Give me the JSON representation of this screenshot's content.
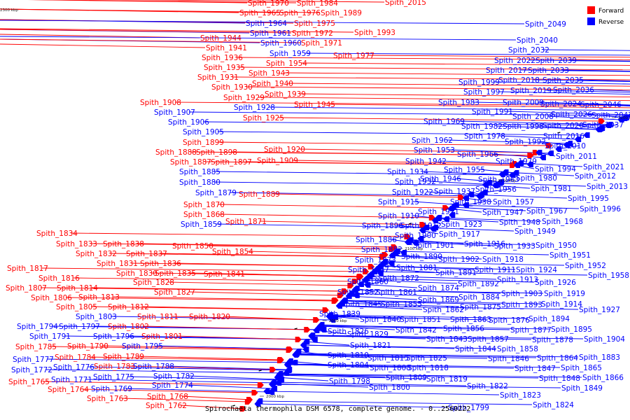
{
  "colors": {
    "forward": "#ff0000",
    "reverse": "#0000ff",
    "backbone": "#808080"
  },
  "caption": "Spirochaeta thermophila DSM 6578, complete genome. - 0..2560222",
  "legend": [
    {
      "label": "Forward",
      "color": "#ff0000"
    },
    {
      "label": "Reverse",
      "color": "#0000ff"
    }
  ],
  "ticks": [
    "2000 kbp",
    "2050 kbp",
    "2100 kbp",
    "2150 kbp",
    "2200 kbp",
    "2250 kbp",
    "2300 kbp"
  ],
  "genes": [
    {
      "name": "Spith_1762",
      "strand": "forward"
    },
    {
      "name": "Spith_1763",
      "strand": "forward"
    },
    {
      "name": "Spith_1764",
      "strand": "forward"
    },
    {
      "name": "Spith_1765",
      "strand": "forward"
    },
    {
      "name": "Spith_1768",
      "strand": "forward"
    },
    {
      "name": "Spith_1769",
      "strand": "reverse"
    },
    {
      "name": "Spith_1771",
      "strand": "reverse"
    },
    {
      "name": "Spith_1772",
      "strand": "reverse"
    },
    {
      "name": "Spith_1774",
      "strand": "reverse"
    },
    {
      "name": "Spith_1775",
      "strand": "reverse"
    },
    {
      "name": "Spith_1776",
      "strand": "reverse"
    },
    {
      "name": "Spith_1777",
      "strand": "reverse"
    },
    {
      "name": "Spith_1782",
      "strand": "reverse"
    },
    {
      "name": "Spith_1783",
      "strand": "forward"
    },
    {
      "name": "Spith_1784",
      "strand": "forward"
    },
    {
      "name": "Spith_1785",
      "strand": "forward"
    },
    {
      "name": "Spith_1788",
      "strand": "reverse"
    },
    {
      "name": "Spith_1789",
      "strand": "forward"
    },
    {
      "name": "Spith_1790",
      "strand": "forward"
    },
    {
      "name": "Spith_1791",
      "strand": "reverse"
    },
    {
      "name": "Spith_1794",
      "strand": "reverse"
    },
    {
      "name": "Spith_1795",
      "strand": "reverse"
    },
    {
      "name": "Spith_1796",
      "strand": "reverse"
    },
    {
      "name": "Spith_1797",
      "strand": "reverse"
    },
    {
      "name": "Spith_1801",
      "strand": "forward"
    },
    {
      "name": "Spith_1802",
      "strand": "forward"
    },
    {
      "name": "Spith_1803",
      "strand": "reverse"
    },
    {
      "name": "Spith_1805",
      "strand": "forward"
    },
    {
      "name": "Spith_1806",
      "strand": "forward"
    },
    {
      "name": "Spith_1807",
      "strand": "forward"
    },
    {
      "name": "Spith_1811",
      "strand": "forward"
    },
    {
      "name": "Spith_1812",
      "strand": "forward"
    },
    {
      "name": "Spith_1813",
      "strand": "forward"
    },
    {
      "name": "Spith_1814",
      "strand": "forward"
    },
    {
      "name": "Spith_1816",
      "strand": "forward"
    },
    {
      "name": "Spith_1817",
      "strand": "forward"
    },
    {
      "name": "Spith_1820",
      "strand": "forward"
    },
    {
      "name": "Spith_1827",
      "strand": "forward"
    },
    {
      "name": "Spith_1828",
      "strand": "forward"
    },
    {
      "name": "Spith_1830",
      "strand": "forward"
    },
    {
      "name": "Spith_1831",
      "strand": "forward"
    },
    {
      "name": "Spith_1832",
      "strand": "forward"
    },
    {
      "name": "Spith_1833",
      "strand": "forward"
    },
    {
      "name": "Spith_1834",
      "strand": "forward"
    },
    {
      "name": "Spith_1835",
      "strand": "forward"
    },
    {
      "name": "Spith_1836",
      "strand": "forward"
    },
    {
      "name": "Spith_1837",
      "strand": "forward"
    },
    {
      "name": "Spith_1838",
      "strand": "forward"
    },
    {
      "name": "Spith_1841",
      "strand": "forward"
    },
    {
      "name": "Spith_1850",
      "strand": "forward"
    },
    {
      "name": "Spith_1854",
      "strand": "forward"
    },
    {
      "name": "Spith_1859",
      "strand": "reverse"
    },
    {
      "name": "Spith_1868",
      "strand": "forward"
    },
    {
      "name": "Spith_1870",
      "strand": "forward"
    },
    {
      "name": "Spith_1871",
      "strand": "forward"
    },
    {
      "name": "Spith_1879",
      "strand": "reverse"
    },
    {
      "name": "Spith_1880",
      "strand": "reverse"
    },
    {
      "name": "Spith_1885",
      "strand": "reverse"
    },
    {
      "name": "Spith_1887",
      "strand": "forward"
    },
    {
      "name": "Spith_1888",
      "strand": "forward"
    },
    {
      "name": "Spith_1889",
      "strand": "forward"
    },
    {
      "name": "Spith_1897",
      "strand": "forward"
    },
    {
      "name": "Spith_1898",
      "strand": "forward"
    },
    {
      "name": "Spith_1899",
      "strand": "forward"
    },
    {
      "name": "Spith_1905",
      "strand": "reverse"
    },
    {
      "name": "Spith_1906",
      "strand": "reverse"
    },
    {
      "name": "Spith_1907",
      "strand": "reverse"
    },
    {
      "name": "Spith_1908",
      "strand": "forward"
    },
    {
      "name": "Spith_1909",
      "strand": "forward"
    },
    {
      "name": "Spith_1920",
      "strand": "forward"
    },
    {
      "name": "Spith_1925",
      "strand": "forward"
    },
    {
      "name": "Spith_1928",
      "strand": "reverse"
    },
    {
      "name": "Spith_1929",
      "strand": "forward"
    },
    {
      "name": "Spith_1930",
      "strand": "forward"
    },
    {
      "name": "Spith_1931",
      "strand": "forward"
    },
    {
      "name": "Spith_1935",
      "strand": "forward"
    },
    {
      "name": "Spith_1936",
      "strand": "forward"
    },
    {
      "name": "Spith_1939",
      "strand": "forward"
    },
    {
      "name": "Spith_1940",
      "strand": "forward"
    },
    {
      "name": "Spith_1941",
      "strand": "forward"
    },
    {
      "name": "Spith_1943",
      "strand": "forward"
    },
    {
      "name": "Spith_1944",
      "strand": "forward"
    },
    {
      "name": "Spith_1945",
      "strand": "forward"
    },
    {
      "name": "Spith_1954",
      "strand": "forward"
    },
    {
      "name": "Spith_1959",
      "strand": "reverse"
    },
    {
      "name": "Spith_1960",
      "strand": "reverse"
    },
    {
      "name": "Spith_1961",
      "strand": "reverse"
    },
    {
      "name": "Spith_1964",
      "strand": "reverse"
    },
    {
      "name": "Spith_1965",
      "strand": "forward"
    },
    {
      "name": "Spith_1970",
      "strand": "forward"
    },
    {
      "name": "Spith_1971",
      "strand": "forward"
    },
    {
      "name": "Spith_1972",
      "strand": "forward"
    },
    {
      "name": "Spith_1975",
      "strand": "forward"
    },
    {
      "name": "Spith_1976",
      "strand": "forward"
    },
    {
      "name": "Spith_1977",
      "strand": "forward"
    },
    {
      "name": "Spith_1984",
      "strand": "forward"
    },
    {
      "name": "Spith_1989",
      "strand": "forward"
    },
    {
      "name": "Spith_1993",
      "strand": "forward"
    },
    {
      "name": "Spith_2015",
      "strand": "forward"
    },
    {
      "name": "Spith_1798",
      "strand": "reverse"
    },
    {
      "name": "Spith_1799",
      "strand": "reverse"
    },
    {
      "name": "Spith_1800",
      "strand": "reverse"
    },
    {
      "name": "Spith_1804",
      "strand": "reverse"
    },
    {
      "name": "Spith_1808",
      "strand": "reverse"
    },
    {
      "name": "Spith_1809",
      "strand": "reverse"
    },
    {
      "name": "Spith_1810",
      "strand": "reverse"
    },
    {
      "name": "Spith_1815",
      "strand": "reverse"
    },
    {
      "name": "Spith_1818",
      "strand": "reverse"
    },
    {
      "name": "Spith_1819",
      "strand": "reverse"
    },
    {
      "name": "Spith_1821",
      "strand": "reverse"
    },
    {
      "name": "Spith_1822",
      "strand": "reverse"
    },
    {
      "name": "Spith_1823",
      "strand": "reverse"
    },
    {
      "name": "Spith_1824",
      "strand": "reverse"
    },
    {
      "name": "Spith_1825",
      "strand": "reverse"
    },
    {
      "name": "Spith_1826",
      "strand": "reverse"
    },
    {
      "name": "Spith_1829",
      "strand": "reverse"
    },
    {
      "name": "Spith_1839",
      "strand": "reverse"
    },
    {
      "name": "Spith_1840",
      "strand": "reverse"
    },
    {
      "name": "Spith_1842",
      "strand": "reverse"
    },
    {
      "name": "Spith_1843",
      "strand": "reverse"
    },
    {
      "name": "Spith_1844",
      "strand": "reverse"
    },
    {
      "name": "Spith_1845",
      "strand": "reverse"
    },
    {
      "name": "Spith_1846",
      "strand": "reverse"
    },
    {
      "name": "Spith_1847",
      "strand": "reverse"
    },
    {
      "name": "Spith_1848",
      "strand": "reverse"
    },
    {
      "name": "Spith_1849",
      "strand": "reverse"
    },
    {
      "name": "Spith_1851",
      "strand": "reverse"
    },
    {
      "name": "Spith_1852",
      "strand": "reverse"
    },
    {
      "name": "Spith_1855",
      "strand": "reverse"
    },
    {
      "name": "Spith_1856",
      "strand": "reverse"
    },
    {
      "name": "Spith_1857",
      "strand": "reverse"
    },
    {
      "name": "Spith_1858",
      "strand": "reverse"
    },
    {
      "name": "Spith_1860",
      "strand": "reverse"
    },
    {
      "name": "Spith_1861",
      "strand": "reverse"
    },
    {
      "name": "Spith_1862",
      "strand": "reverse"
    },
    {
      "name": "Spith_1863",
      "strand": "reverse"
    },
    {
      "name": "Spith_1864",
      "strand": "reverse"
    },
    {
      "name": "Spith_1865",
      "strand": "reverse"
    },
    {
      "name": "Spith_1866",
      "strand": "reverse"
    },
    {
      "name": "Spith_1867",
      "strand": "reverse"
    },
    {
      "name": "Spith_1869",
      "strand": "reverse"
    },
    {
      "name": "Spith_1872",
      "strand": "reverse"
    },
    {
      "name": "Spith_1873",
      "strand": "reverse"
    },
    {
      "name": "Spith_1874",
      "strand": "reverse"
    },
    {
      "name": "Spith_1875",
      "strand": "reverse"
    },
    {
      "name": "Spith_1876",
      "strand": "reverse"
    },
    {
      "name": "Spith_1877",
      "strand": "reverse"
    },
    {
      "name": "Spith_1878",
      "strand": "reverse"
    },
    {
      "name": "Spith_1881",
      "strand": "reverse"
    },
    {
      "name": "Spith_1882",
      "strand": "reverse"
    },
    {
      "name": "Spith_1883",
      "strand": "reverse"
    },
    {
      "name": "Spith_1884",
      "strand": "reverse"
    },
    {
      "name": "Spith_1886",
      "strand": "reverse"
    },
    {
      "name": "Spith_1890",
      "strand": "reverse"
    },
    {
      "name": "Spith_1891",
      "strand": "reverse"
    },
    {
      "name": "Spith_1892",
      "strand": "reverse"
    },
    {
      "name": "Spith_1893",
      "strand": "reverse"
    },
    {
      "name": "Spith_1894",
      "strand": "reverse"
    },
    {
      "name": "Spith_1895",
      "strand": "reverse"
    },
    {
      "name": "Spith_1896",
      "strand": "reverse"
    },
    {
      "name": "Spith_1900",
      "strand": "reverse"
    },
    {
      "name": "Spith_1901",
      "strand": "reverse"
    },
    {
      "name": "Spith_1902",
      "strand": "reverse"
    },
    {
      "name": "Spith_1903",
      "strand": "reverse"
    },
    {
      "name": "Spith_1904",
      "strand": "reverse"
    },
    {
      "name": "Spith_1910",
      "strand": "reverse"
    },
    {
      "name": "Spith_1911",
      "strand": "reverse"
    },
    {
      "name": "Spith_1912",
      "strand": "reverse"
    },
    {
      "name": "Spith_1913",
      "strand": "reverse"
    },
    {
      "name": "Spith_1914",
      "strand": "reverse"
    },
    {
      "name": "Spith_1915",
      "strand": "reverse"
    },
    {
      "name": "Spith_1916",
      "strand": "reverse"
    },
    {
      "name": "Spith_1917",
      "strand": "reverse"
    },
    {
      "name": "Spith_1918",
      "strand": "reverse"
    },
    {
      "name": "Spith_1919",
      "strand": "reverse"
    },
    {
      "name": "Spith_1921",
      "strand": "reverse"
    },
    {
      "name": "Spith_1922",
      "strand": "reverse"
    },
    {
      "name": "Spith_1923",
      "strand": "reverse"
    },
    {
      "name": "Spith_1924",
      "strand": "reverse"
    },
    {
      "name": "Spith_1926",
      "strand": "reverse"
    },
    {
      "name": "Spith_1927",
      "strand": "reverse"
    },
    {
      "name": "Spith_1932",
      "strand": "reverse"
    },
    {
      "name": "Spith_1933",
      "strand": "reverse"
    },
    {
      "name": "Spith_1934",
      "strand": "reverse"
    },
    {
      "name": "Spith_1937",
      "strand": "reverse"
    },
    {
      "name": "Spith_1938",
      "strand": "reverse"
    },
    {
      "name": "Spith_1942",
      "strand": "reverse"
    },
    {
      "name": "Spith_1946",
      "strand": "reverse"
    },
    {
      "name": "Spith_1947",
      "strand": "reverse"
    },
    {
      "name": "Spith_1948",
      "strand": "reverse"
    },
    {
      "name": "Spith_1949",
      "strand": "reverse"
    },
    {
      "name": "Spith_1950",
      "strand": "reverse"
    },
    {
      "name": "Spith_1951",
      "strand": "reverse"
    },
    {
      "name": "Spith_1952",
      "strand": "reverse"
    },
    {
      "name": "Spith_1953",
      "strand": "reverse"
    },
    {
      "name": "Spith_1955",
      "strand": "reverse"
    },
    {
      "name": "Spith_1956",
      "strand": "reverse"
    },
    {
      "name": "Spith_1957",
      "strand": "reverse"
    },
    {
      "name": "Spith_1958",
      "strand": "reverse"
    },
    {
      "name": "Spith_1962",
      "strand": "reverse"
    },
    {
      "name": "Spith_1963",
      "strand": "reverse"
    },
    {
      "name": "Spith_1966",
      "strand": "reverse"
    },
    {
      "name": "Spith_1967",
      "strand": "reverse"
    },
    {
      "name": "Spith_1968",
      "strand": "reverse"
    },
    {
      "name": "Spith_1969",
      "strand": "reverse"
    },
    {
      "name": "Spith_1978",
      "strand": "reverse"
    },
    {
      "name": "Spith_1979",
      "strand": "reverse"
    },
    {
      "name": "Spith_1980",
      "strand": "reverse"
    },
    {
      "name": "Spith_1981",
      "strand": "reverse"
    },
    {
      "name": "Spith_1982",
      "strand": "reverse"
    },
    {
      "name": "Spith_1983",
      "strand": "reverse"
    },
    {
      "name": "Spith_1991",
      "strand": "reverse"
    },
    {
      "name": "Spith_1992",
      "strand": "reverse"
    },
    {
      "name": "Spith_1994",
      "strand": "reverse"
    },
    {
      "name": "Spith_1995",
      "strand": "reverse"
    },
    {
      "name": "Spith_1996",
      "strand": "reverse"
    },
    {
      "name": "Spith_1997",
      "strand": "reverse"
    },
    {
      "name": "Spith_1998",
      "strand": "reverse"
    },
    {
      "name": "Spith_1999",
      "strand": "reverse"
    },
    {
      "name": "Spith_2008",
      "strand": "reverse"
    },
    {
      "name": "Spith_2009",
      "strand": "reverse"
    },
    {
      "name": "Spith_2010",
      "strand": "reverse"
    },
    {
      "name": "Spith_2011",
      "strand": "reverse"
    },
    {
      "name": "Spith_2012",
      "strand": "reverse"
    },
    {
      "name": "Spith_2013",
      "strand": "reverse"
    },
    {
      "name": "Spith_2016",
      "strand": "reverse"
    },
    {
      "name": "Spith_2017",
      "strand": "reverse"
    },
    {
      "name": "Spith_2018",
      "strand": "reverse"
    },
    {
      "name": "Spith_2019",
      "strand": "reverse"
    },
    {
      "name": "Spith_2020",
      "strand": "reverse"
    },
    {
      "name": "Spith_2021",
      "strand": "reverse"
    },
    {
      "name": "Spith_2022",
      "strand": "reverse"
    },
    {
      "name": "Spith_2024",
      "strand": "reverse"
    },
    {
      "name": "Spith_2026",
      "strand": "reverse"
    },
    {
      "name": "Spith_2032",
      "strand": "reverse"
    },
    {
      "name": "Spith_2033",
      "strand": "reverse"
    },
    {
      "name": "Spith_2035",
      "strand": "reverse"
    },
    {
      "name": "Spith_2036",
      "strand": "reverse"
    },
    {
      "name": "Spith_2037",
      "strand": "reverse"
    },
    {
      "name": "Spith_2039",
      "strand": "reverse"
    },
    {
      "name": "Spith_2040",
      "strand": "reverse"
    },
    {
      "name": "Spith_2046",
      "strand": "reverse"
    },
    {
      "name": "Spith_2047",
      "strand": "reverse"
    },
    {
      "name": "Spith_2049",
      "strand": "reverse"
    }
  ]
}
